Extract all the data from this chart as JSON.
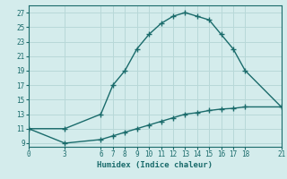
{
  "xlabel": "Humidex (Indice chaleur)",
  "background_color": "#d4ecec",
  "grid_color": "#b8d8d8",
  "line_color": "#1a6b6b",
  "upper_curve_x": [
    0,
    3,
    6,
    7,
    8,
    9,
    10,
    11,
    12,
    13,
    14,
    15,
    16,
    17,
    18,
    21
  ],
  "upper_curve_y": [
    11,
    11,
    13,
    17,
    19,
    22,
    24,
    25.5,
    26.5,
    27,
    26.5,
    26,
    24,
    22,
    19,
    14
  ],
  "lower_curve_x": [
    0,
    3,
    6,
    7,
    8,
    9,
    10,
    11,
    12,
    13,
    14,
    15,
    16,
    17,
    18,
    21
  ],
  "lower_curve_y": [
    11,
    9,
    9.5,
    10,
    10.5,
    11,
    11.5,
    12,
    12.5,
    13,
    13.2,
    13.5,
    13.7,
    13.8,
    14,
    14
  ],
  "xticks": [
    0,
    3,
    6,
    7,
    8,
    9,
    10,
    11,
    12,
    13,
    14,
    15,
    16,
    17,
    18,
    21
  ],
  "yticks": [
    9,
    11,
    13,
    15,
    17,
    19,
    21,
    23,
    25,
    27
  ],
  "xlim": [
    0,
    21
  ],
  "ylim": [
    8.5,
    28
  ]
}
